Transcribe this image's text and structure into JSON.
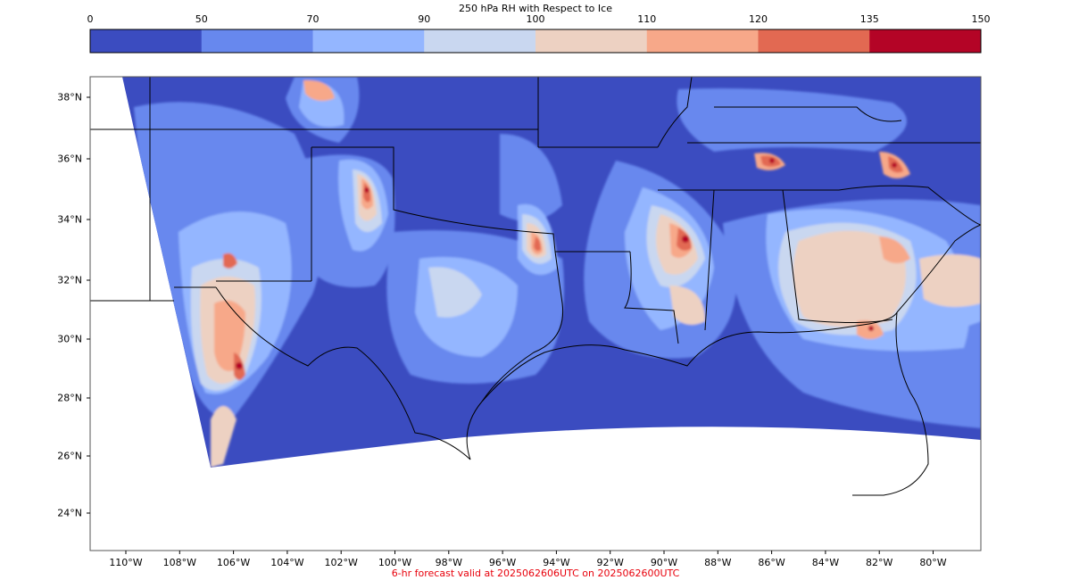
{
  "figure": {
    "title": "250 hPa RH with Respect to Ice",
    "footer": "6-hr forecast valid at 2025062606UTC on 2025062600UTC",
    "footer_color": "#e8000b"
  },
  "colorbar": {
    "ticks": [
      "0",
      "50",
      "70",
      "90",
      "100",
      "110",
      "120",
      "135",
      "150"
    ],
    "colors": [
      "#3b4cc0",
      "#6788ee",
      "#94b6ff",
      "#c9d7f0",
      "#edd1c2",
      "#f7a889",
      "#e26952",
      "#b40426"
    ]
  },
  "map": {
    "lat_labels": [
      "38°N",
      "36°N",
      "34°N",
      "32°N",
      "30°N",
      "28°N",
      "26°N",
      "24°N"
    ],
    "lon_labels": [
      "110°W",
      "108°W",
      "106°W",
      "104°W",
      "102°W",
      "100°W",
      "98°W",
      "96°W",
      "94°W",
      "92°W",
      "90°W",
      "88°W",
      "86°W",
      "84°W",
      "82°W",
      "80°W"
    ],
    "boundary_color": "#000000",
    "background_color": "#ffffff"
  }
}
